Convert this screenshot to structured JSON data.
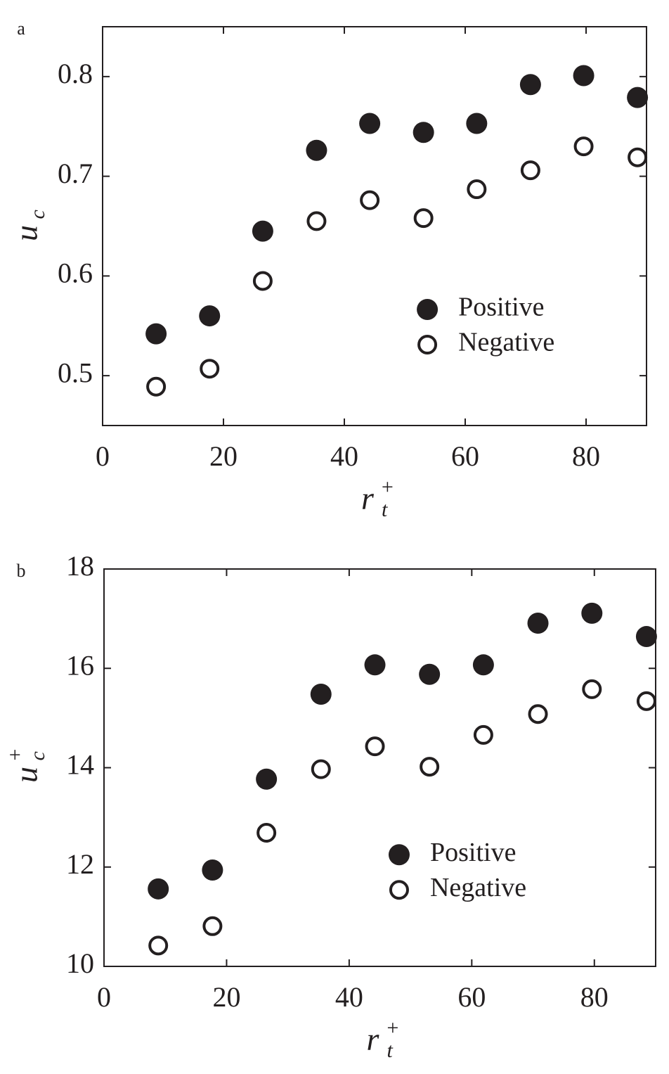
{
  "chart_data": [
    {
      "type": "scatter",
      "panel_label": "a",
      "xlabel": {
        "base": "r",
        "sub": "t",
        "sup": "+"
      },
      "ylabel": {
        "base": "u",
        "sub": "c"
      },
      "xlim": [
        0,
        90
      ],
      "xticks": [
        0,
        20,
        40,
        60,
        80
      ],
      "ylim": [
        0.45,
        0.85
      ],
      "yticks": [
        0.5,
        0.6,
        0.7,
        0.8
      ],
      "legend": "lower right",
      "series": [
        {
          "name": "Positive",
          "color": "#231f20",
          "marker": "filled",
          "x": [
            8.85,
            17.7,
            26.5,
            35.4,
            44.2,
            53.1,
            61.9,
            70.8,
            79.6,
            88.5
          ],
          "values": [
            0.542,
            0.56,
            0.645,
            0.726,
            0.753,
            0.744,
            0.753,
            0.792,
            0.801,
            0.779
          ]
        },
        {
          "name": "Negative",
          "color": "#231f20",
          "marker": "open",
          "x": [
            8.85,
            17.7,
            26.5,
            35.4,
            44.2,
            53.1,
            61.9,
            70.8,
            79.6,
            88.5
          ],
          "values": [
            0.489,
            0.507,
            0.595,
            0.655,
            0.676,
            0.658,
            0.687,
            0.706,
            0.73,
            0.719
          ]
        }
      ]
    },
    {
      "type": "scatter",
      "panel_label": "b",
      "xlabel": {
        "base": "r",
        "sub": "t",
        "sup": "+"
      },
      "ylabel": {
        "base": "u",
        "sub": "c",
        "sup": "+"
      },
      "xlim": [
        0,
        90
      ],
      "xticks": [
        0,
        20,
        40,
        60,
        80
      ],
      "ylim": [
        10,
        18
      ],
      "yticks": [
        10,
        12,
        14,
        16,
        18
      ],
      "legend": "lower right",
      "series": [
        {
          "name": "Positive",
          "color": "#231f20",
          "marker": "filled",
          "x": [
            8.85,
            17.7,
            26.5,
            35.4,
            44.2,
            53.1,
            61.9,
            70.8,
            79.6,
            88.5
          ],
          "values": [
            11.56,
            11.94,
            13.77,
            15.48,
            16.07,
            15.88,
            16.07,
            16.91,
            17.11,
            16.64
          ]
        },
        {
          "name": "Negative",
          "color": "#231f20",
          "marker": "open",
          "x": [
            8.85,
            17.7,
            26.5,
            35.4,
            44.2,
            53.1,
            61.9,
            70.8,
            79.6,
            88.5
          ],
          "values": [
            10.42,
            10.81,
            12.69,
            13.97,
            14.43,
            14.02,
            14.66,
            15.08,
            15.58,
            15.34
          ]
        }
      ]
    }
  ]
}
